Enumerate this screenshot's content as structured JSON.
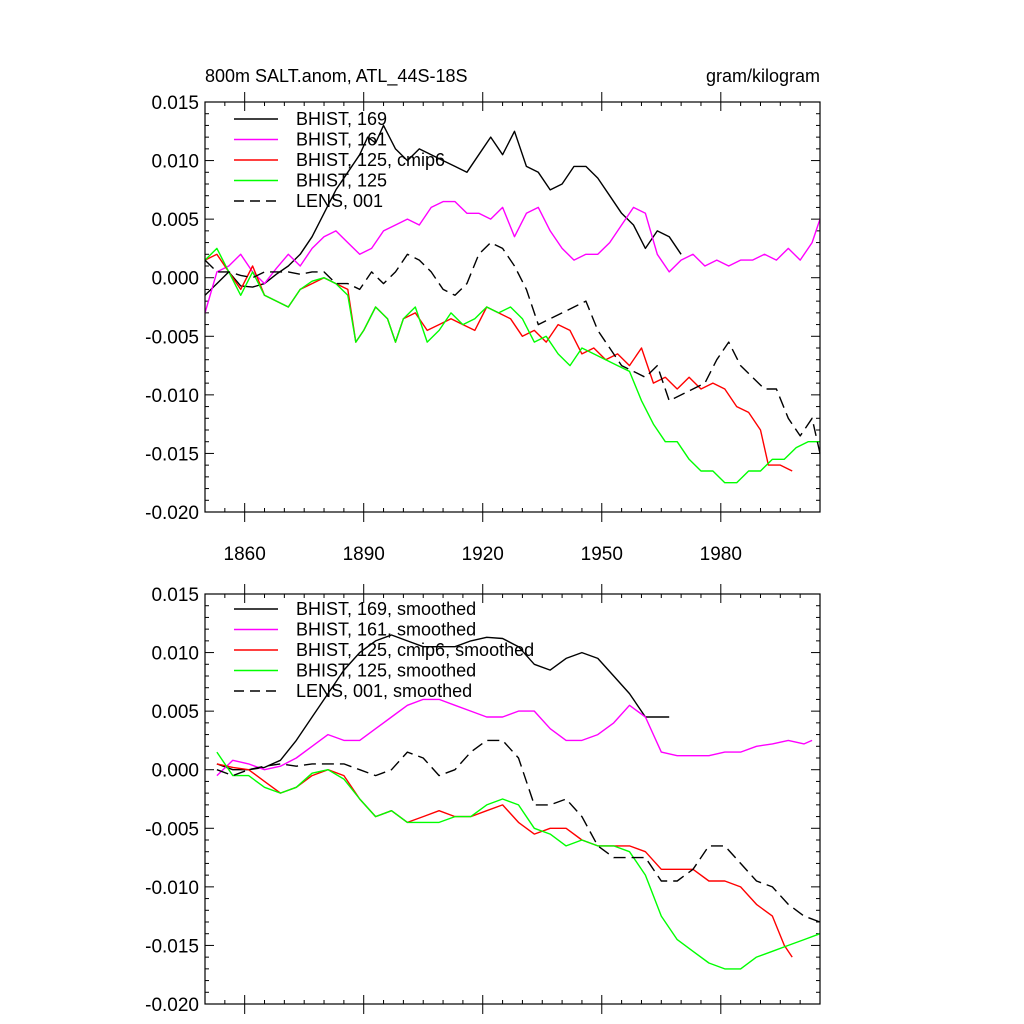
{
  "chart_data": [
    {
      "type": "line",
      "title": "800m SALT.anom, ATL_44S-18S",
      "units": "gram/kilogram",
      "xlim": [
        1850,
        2005
      ],
      "ylim": [
        -0.02,
        0.015
      ],
      "x_tick_values": [
        1860,
        1890,
        1920,
        1950,
        1980
      ],
      "x_tick_labels": [
        "1860",
        "1890",
        "1920",
        "1950",
        "1980"
      ],
      "y_tick_values": [
        0.015,
        0.01,
        0.005,
        0,
        -0.005,
        -0.01,
        -0.015,
        -0.02
      ],
      "y_tick_labels": [
        "0.015",
        "0.010",
        "0.005",
        "0.000",
        "-0.005",
        "-0.010",
        "-0.015",
        "-0.020"
      ],
      "legend_position": "top-left",
      "series": [
        {
          "name": "BHIST, 169",
          "color": "#000000",
          "dash": "solid",
          "x": [
            1850,
            1853,
            1856,
            1859,
            1862,
            1865,
            1868,
            1871,
            1874,
            1877,
            1880,
            1883,
            1886,
            1889,
            1891,
            1893,
            1895,
            1898,
            1901,
            1904,
            1907,
            1910,
            1913,
            1916,
            1919,
            1922,
            1925,
            1928,
            1931,
            1934,
            1937,
            1940,
            1943,
            1946,
            1949,
            1952,
            1955,
            1958,
            1961,
            1964,
            1967,
            1970
          ],
          "y": [
            -0.0015,
            -0.0005,
            0.0005,
            -0.0007,
            -0.0008,
            -0.0005,
            0.0003,
            0.001,
            0.002,
            0.0035,
            0.0055,
            0.0075,
            0.009,
            0.0105,
            0.012,
            0.0115,
            0.013,
            0.011,
            0.01,
            0.011,
            0.0105,
            0.01,
            0.0095,
            0.009,
            0.0105,
            0.012,
            0.0105,
            0.0125,
            0.0095,
            0.009,
            0.0075,
            0.008,
            0.0095,
            0.0095,
            0.0085,
            0.007,
            0.0055,
            0.0045,
            0.0025,
            0.004,
            0.0035,
            0.002
          ]
        },
        {
          "name": "BHIST, 161",
          "color": "#ff00ff",
          "dash": "solid",
          "x": [
            1850,
            1853,
            1856,
            1859,
            1862,
            1865,
            1868,
            1871,
            1874,
            1877,
            1880,
            1883,
            1886,
            1889,
            1892,
            1895,
            1898,
            1901,
            1904,
            1907,
            1910,
            1913,
            1916,
            1919,
            1922,
            1925,
            1928,
            1931,
            1934,
            1937,
            1940,
            1943,
            1946,
            1949,
            1952,
            1955,
            1958,
            1961,
            1964,
            1967,
            1970,
            1973,
            1976,
            1979,
            1982,
            1985,
            1988,
            1991,
            1994,
            1997,
            2000,
            2003,
            2005
          ],
          "y": [
            -0.003,
            0.0005,
            0.001,
            0.002,
            0.0005,
            -0.0005,
            0.0008,
            0.002,
            0.001,
            0.0025,
            0.0035,
            0.004,
            0.003,
            0.002,
            0.0025,
            0.004,
            0.0045,
            0.005,
            0.0045,
            0.006,
            0.0065,
            0.0065,
            0.0055,
            0.0055,
            0.005,
            0.006,
            0.0035,
            0.0055,
            0.006,
            0.004,
            0.0025,
            0.0015,
            0.002,
            0.002,
            0.003,
            0.0045,
            0.006,
            0.0055,
            0.002,
            0.0005,
            0.0015,
            0.002,
            0.001,
            0.0015,
            0.001,
            0.0015,
            0.0015,
            0.002,
            0.0015,
            0.0025,
            0.0015,
            0.003,
            0.005
          ]
        },
        {
          "name": "BHIST, 125, cmip6",
          "color": "#ff0000",
          "dash": "solid",
          "x": [
            1850,
            1853,
            1856,
            1859,
            1862,
            1865,
            1868,
            1871,
            1874,
            1877,
            1880,
            1883,
            1886,
            1888,
            1890,
            1893,
            1896,
            1898,
            1900,
            1903,
            1906,
            1909,
            1912,
            1915,
            1918,
            1921,
            1924,
            1927,
            1930,
            1933,
            1936,
            1939,
            1942,
            1945,
            1948,
            1951,
            1954,
            1957,
            1960,
            1963,
            1966,
            1969,
            1972,
            1975,
            1978,
            1981,
            1984,
            1987,
            1990,
            1992,
            1995,
            1998
          ],
          "y": [
            0.0015,
            0.002,
            0.0005,
            -0.001,
            0.001,
            -0.0015,
            -0.002,
            -0.0025,
            -0.001,
            -0.0005,
            0,
            -0.0005,
            -0.001,
            -0.0055,
            -0.0045,
            -0.0025,
            -0.0035,
            -0.0055,
            -0.0035,
            -0.003,
            -0.0045,
            -0.004,
            -0.0035,
            -0.004,
            -0.0045,
            -0.0025,
            -0.003,
            -0.0035,
            -0.005,
            -0.0045,
            -0.0055,
            -0.004,
            -0.0045,
            -0.0065,
            -0.006,
            -0.007,
            -0.0065,
            -0.0075,
            -0.006,
            -0.009,
            -0.0085,
            -0.0095,
            -0.0085,
            -0.0095,
            -0.009,
            -0.0095,
            -0.011,
            -0.0115,
            -0.013,
            -0.016,
            -0.016,
            -0.0165
          ]
        },
        {
          "name": "BHIST, 125",
          "color": "#00ff00",
          "dash": "solid",
          "x": [
            1850,
            1853,
            1856,
            1859,
            1862,
            1865,
            1868,
            1871,
            1874,
            1877,
            1880,
            1883,
            1886,
            1888,
            1890,
            1893,
            1896,
            1898,
            1900,
            1903,
            1906,
            1909,
            1912,
            1915,
            1918,
            1921,
            1924,
            1927,
            1930,
            1933,
            1936,
            1939,
            1942,
            1945,
            1948,
            1951,
            1954,
            1957,
            1960,
            1963,
            1966,
            1969,
            1972,
            1975,
            1978,
            1981,
            1984,
            1987,
            1990,
            1993,
            1996,
            1999,
            2002,
            2005
          ],
          "y": [
            0.0015,
            0.0025,
            0.0005,
            -0.0015,
            0.0005,
            -0.0015,
            -0.002,
            -0.0025,
            -0.001,
            -0.0003,
            0,
            -0.0005,
            -0.0015,
            -0.0055,
            -0.0045,
            -0.0025,
            -0.0035,
            -0.0055,
            -0.0035,
            -0.0025,
            -0.0055,
            -0.0045,
            -0.003,
            -0.004,
            -0.0035,
            -0.0025,
            -0.003,
            -0.0025,
            -0.0035,
            -0.0055,
            -0.005,
            -0.0065,
            -0.0075,
            -0.006,
            -0.0065,
            -0.007,
            -0.0075,
            -0.008,
            -0.0105,
            -0.0125,
            -0.014,
            -0.014,
            -0.0155,
            -0.0165,
            -0.0165,
            -0.0175,
            -0.0175,
            -0.0165,
            -0.0165,
            -0.0155,
            -0.0155,
            -0.0145,
            -0.014,
            -0.014
          ]
        },
        {
          "name": "LENS, 001",
          "color": "#000000",
          "dash": "dashed",
          "x": [
            1850,
            1853,
            1856,
            1859,
            1862,
            1865,
            1868,
            1871,
            1874,
            1877,
            1880,
            1883,
            1886,
            1889,
            1892,
            1895,
            1898,
            1901,
            1904,
            1907,
            1910,
            1913,
            1916,
            1919,
            1922,
            1925,
            1928,
            1931,
            1934,
            1937,
            1940,
            1943,
            1946,
            1949,
            1952,
            1955,
            1958,
            1961,
            1964,
            1967,
            1970,
            1973,
            1976,
            1979,
            1982,
            1985,
            1988,
            1991,
            1994,
            1997,
            2000,
            2003,
            2005
          ],
          "y": [
            0.0015,
            0.0005,
            0.0005,
            0.0002,
            0,
            0.0005,
            0.0005,
            0.0005,
            0.0003,
            0.0005,
            0.0005,
            -0.0005,
            -0.0005,
            -0.001,
            0.0005,
            -0.0005,
            0.0005,
            0.002,
            0.0015,
            0.0005,
            -0.001,
            -0.0015,
            -0.0005,
            0.002,
            0.003,
            0.0025,
            0.001,
            -0.001,
            -0.004,
            -0.0035,
            -0.003,
            -0.0025,
            -0.002,
            -0.0045,
            -0.006,
            -0.0075,
            -0.008,
            -0.0085,
            -0.0075,
            -0.0105,
            -0.01,
            -0.0095,
            -0.009,
            -0.007,
            -0.0055,
            -0.0075,
            -0.0085,
            -0.0095,
            -0.0095,
            -0.012,
            -0.0135,
            -0.012,
            -0.015
          ]
        }
      ]
    },
    {
      "type": "line",
      "xlim": [
        1850,
        2005
      ],
      "ylim": [
        -0.02,
        0.015
      ],
      "x_tick_values": [
        1860,
        1890,
        1920,
        1950,
        1980
      ],
      "y_tick_values": [
        0.015,
        0.01,
        0.005,
        0,
        -0.005,
        -0.01,
        -0.015,
        -0.02
      ],
      "y_tick_labels": [
        "0.015",
        "0.010",
        "0.005",
        "0.000",
        "-0.005",
        "-0.010",
        "-0.015",
        "-0.020"
      ],
      "legend_position": "top-left",
      "series": [
        {
          "name": "BHIST, 169, smoothed",
          "color": "#000000",
          "dash": "solid",
          "x": [
            1853,
            1857,
            1861,
            1865,
            1869,
            1873,
            1877,
            1881,
            1885,
            1889,
            1893,
            1897,
            1901,
            1905,
            1909,
            1913,
            1917,
            1921,
            1925,
            1929,
            1933,
            1937,
            1941,
            1945,
            1949,
            1953,
            1957,
            1961,
            1965,
            1967
          ],
          "y": [
            0.0005,
            0,
            0,
            0.0002,
            0.0008,
            0.0025,
            0.0045,
            0.0065,
            0.0085,
            0.01,
            0.011,
            0.0115,
            0.011,
            0.0105,
            0.0105,
            0.0105,
            0.011,
            0.0113,
            0.0112,
            0.0105,
            0.009,
            0.0085,
            0.0095,
            0.01,
            0.0095,
            0.008,
            0.0065,
            0.0045,
            0.0045,
            0.0045
          ]
        },
        {
          "name": "BHIST, 161, smoothed",
          "color": "#ff00ff",
          "dash": "solid",
          "x": [
            1853,
            1857,
            1861,
            1865,
            1869,
            1873,
            1877,
            1881,
            1885,
            1889,
            1893,
            1897,
            1901,
            1905,
            1909,
            1913,
            1917,
            1921,
            1925,
            1929,
            1933,
            1937,
            1941,
            1945,
            1949,
            1953,
            1957,
            1961,
            1965,
            1969,
            1973,
            1977,
            1981,
            1985,
            1989,
            1993,
            1997,
            2001,
            2003
          ],
          "y": [
            -0.0005,
            0.0008,
            0.0005,
            0,
            0.0003,
            0.001,
            0.002,
            0.003,
            0.0025,
            0.0025,
            0.0035,
            0.0045,
            0.0055,
            0.006,
            0.006,
            0.0055,
            0.005,
            0.0045,
            0.0045,
            0.005,
            0.005,
            0.0035,
            0.0025,
            0.0025,
            0.003,
            0.004,
            0.0055,
            0.0045,
            0.0015,
            0.0012,
            0.0012,
            0.0012,
            0.0015,
            0.0015,
            0.002,
            0.0022,
            0.0025,
            0.0022,
            0.0025
          ]
        },
        {
          "name": "BHIST, 125, cmip6, smoothed",
          "color": "#ff0000",
          "dash": "solid",
          "x": [
            1853,
            1857,
            1861,
            1865,
            1869,
            1873,
            1877,
            1881,
            1885,
            1889,
            1893,
            1897,
            1901,
            1905,
            1909,
            1913,
            1917,
            1921,
            1925,
            1929,
            1933,
            1937,
            1941,
            1945,
            1949,
            1953,
            1957,
            1961,
            1965,
            1969,
            1973,
            1977,
            1981,
            1985,
            1989,
            1993,
            1996,
            1998
          ],
          "y": [
            0.0005,
            0.0002,
            0,
            -0.001,
            -0.002,
            -0.0015,
            -0.0005,
            0,
            -0.0005,
            -0.0025,
            -0.004,
            -0.0035,
            -0.0045,
            -0.004,
            -0.0035,
            -0.004,
            -0.004,
            -0.0035,
            -0.003,
            -0.0045,
            -0.0055,
            -0.005,
            -0.005,
            -0.006,
            -0.0065,
            -0.0065,
            -0.0065,
            -0.007,
            -0.0085,
            -0.0085,
            -0.0085,
            -0.0095,
            -0.0095,
            -0.01,
            -0.0115,
            -0.0125,
            -0.015,
            -0.016
          ]
        },
        {
          "name": "BHIST, 125, smoothed",
          "color": "#00ff00",
          "dash": "solid",
          "x": [
            1853,
            1857,
            1861,
            1865,
            1869,
            1873,
            1877,
            1881,
            1885,
            1889,
            1893,
            1897,
            1901,
            1905,
            1909,
            1913,
            1917,
            1921,
            1925,
            1929,
            1933,
            1937,
            1941,
            1945,
            1949,
            1953,
            1957,
            1961,
            1965,
            1969,
            1973,
            1977,
            1981,
            1985,
            1989,
            1993,
            1997,
            2001,
            2005
          ],
          "y": [
            0.0015,
            -0.0005,
            -0.0005,
            -0.0015,
            -0.002,
            -0.0015,
            -0.0003,
            0,
            -0.0008,
            -0.0025,
            -0.004,
            -0.0035,
            -0.0045,
            -0.0045,
            -0.0045,
            -0.004,
            -0.004,
            -0.003,
            -0.0025,
            -0.003,
            -0.005,
            -0.0055,
            -0.0065,
            -0.006,
            -0.0065,
            -0.0065,
            -0.007,
            -0.009,
            -0.0125,
            -0.0145,
            -0.0155,
            -0.0165,
            -0.017,
            -0.017,
            -0.016,
            -0.0155,
            -0.015,
            -0.0145,
            -0.014
          ]
        },
        {
          "name": "LENS, 001, smoothed",
          "color": "#000000",
          "dash": "dashed",
          "x": [
            1853,
            1857,
            1861,
            1865,
            1869,
            1873,
            1877,
            1881,
            1885,
            1889,
            1893,
            1897,
            1901,
            1905,
            1909,
            1913,
            1917,
            1921,
            1925,
            1929,
            1933,
            1937,
            1941,
            1945,
            1949,
            1953,
            1957,
            1961,
            1965,
            1969,
            1973,
            1977,
            1981,
            1985,
            1989,
            1993,
            1997,
            2001,
            2005
          ],
          "y": [
            0,
            -0.0005,
            0,
            0.0003,
            0.0005,
            0.0003,
            0.0005,
            0.0005,
            0.0005,
            0,
            -0.0005,
            0,
            0.0015,
            0.001,
            -0.0005,
            0,
            0.0015,
            0.0025,
            0.0025,
            0.001,
            -0.003,
            -0.003,
            -0.0025,
            -0.004,
            -0.0065,
            -0.0075,
            -0.0075,
            -0.0075,
            -0.0095,
            -0.0095,
            -0.0085,
            -0.0065,
            -0.0065,
            -0.008,
            -0.0095,
            -0.01,
            -0.0115,
            -0.0125,
            -0.013
          ]
        }
      ]
    }
  ]
}
